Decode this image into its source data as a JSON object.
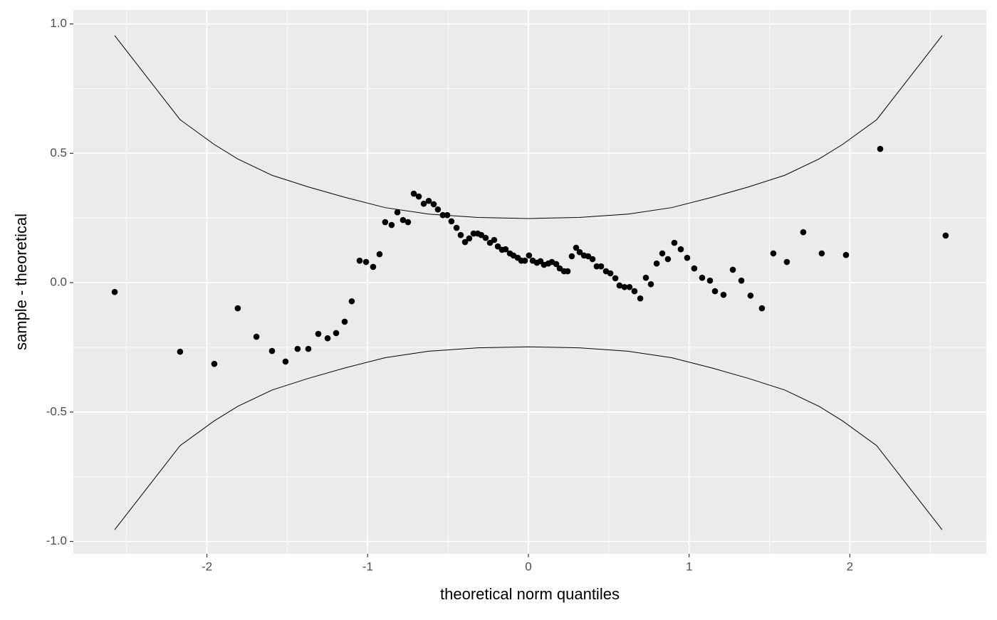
{
  "chart_data": {
    "type": "scatter",
    "x_label": "theoretical norm quantiles",
    "y_label": "sample - theoretical",
    "xlim": [
      -2.831,
      2.849
    ],
    "ylim": [
      -1.048,
      1.054
    ],
    "xticks": [
      -2,
      -1,
      0,
      1,
      2
    ],
    "yticks": [
      {
        "value": -1,
        "label": "-1.0"
      },
      {
        "value": -0.5,
        "label": "-0.5"
      },
      {
        "value": 0,
        "label": "0.0"
      },
      {
        "value": 0.5,
        "label": "0.5"
      },
      {
        "value": 1,
        "label": "1.0"
      }
    ],
    "xminor": [
      -2.5,
      -1.5,
      -0.5,
      0.5,
      1.5,
      2.5
    ],
    "yminor": [
      -0.75,
      -0.25,
      0.25,
      0.75
    ],
    "grid": true,
    "color": "#000000",
    "x": [
      -2.574,
      -2.167,
      -1.954,
      -1.808,
      -1.692,
      -1.595,
      -1.511,
      -1.436,
      -1.369,
      -1.307,
      -1.249,
      -1.196,
      -1.143,
      -1.099,
      -1.05,
      -1.01,
      -0.966,
      -0.926,
      -0.891,
      -0.851,
      -0.815,
      -0.78,
      -0.749,
      -0.713,
      -0.682,
      -0.651,
      -0.62,
      -0.589,
      -0.563,
      -0.532,
      -0.505,
      -0.479,
      -0.447,
      -0.421,
      -0.394,
      -0.368,
      -0.341,
      -0.315,
      -0.293,
      -0.266,
      -0.239,
      -0.213,
      -0.19,
      -0.164,
      -0.142,
      -0.115,
      -0.093,
      -0.066,
      -0.044,
      -0.022,
      0.004,
      0.027,
      0.053,
      0.075,
      0.097,
      0.124,
      0.146,
      0.173,
      0.195,
      0.222,
      0.244,
      0.27,
      0.297,
      0.319,
      0.346,
      0.372,
      0.399,
      0.425,
      0.452,
      0.483,
      0.51,
      0.541,
      0.567,
      0.598,
      0.629,
      0.66,
      0.696,
      0.731,
      0.762,
      0.798,
      0.833,
      0.868,
      0.908,
      0.948,
      0.988,
      1.032,
      1.081,
      1.13,
      1.161,
      1.214,
      1.272,
      1.325,
      1.382,
      1.453,
      1.524,
      1.608,
      1.71,
      1.825,
      1.976,
      2.189,
      2.596
    ],
    "values": [
      -0.036,
      -0.267,
      -0.314,
      -0.099,
      -0.209,
      -0.264,
      -0.305,
      -0.256,
      -0.256,
      -0.198,
      -0.215,
      -0.195,
      -0.151,
      -0.072,
      0.085,
      0.08,
      0.061,
      0.11,
      0.234,
      0.223,
      0.272,
      0.242,
      0.234,
      0.344,
      0.333,
      0.305,
      0.316,
      0.303,
      0.283,
      0.261,
      0.261,
      0.237,
      0.212,
      0.184,
      0.157,
      0.171,
      0.19,
      0.19,
      0.184,
      0.173,
      0.154,
      0.165,
      0.14,
      0.127,
      0.129,
      0.113,
      0.105,
      0.096,
      0.085,
      0.085,
      0.105,
      0.085,
      0.077,
      0.083,
      0.069,
      0.074,
      0.08,
      0.072,
      0.055,
      0.044,
      0.044,
      0.102,
      0.135,
      0.118,
      0.105,
      0.102,
      0.091,
      0.063,
      0.063,
      0.044,
      0.036,
      0.017,
      -0.011,
      -0.017,
      -0.017,
      -0.033,
      -0.061,
      0.019,
      -0.006,
      0.074,
      0.113,
      0.091,
      0.154,
      0.129,
      0.096,
      0.055,
      0.019,
      0.008,
      -0.033,
      -0.047,
      0.05,
      0.008,
      -0.05,
      -0.099,
      0.113,
      0.08,
      0.195,
      0.113,
      0.107,
      0.517,
      0.182
    ],
    "lines": [
      {
        "color": "#000000",
        "x": [
          -2.574,
          -2.167,
          -1.954,
          -1.808,
          -1.595,
          -1.369,
          -1.143,
          -0.891,
          -0.62,
          -0.315,
          0,
          0.315,
          0.62,
          0.891,
          1.143,
          1.369,
          1.595,
          1.808,
          1.954,
          2.167,
          2.574
        ],
        "values": [
          0.955,
          0.63,
          0.534,
          0.478,
          0.415,
          0.37,
          0.33,
          0.29,
          0.265,
          0.252,
          0.248,
          0.252,
          0.265,
          0.29,
          0.33,
          0.37,
          0.415,
          0.478,
          0.534,
          0.63,
          0.955
        ]
      },
      {
        "color": "#000000",
        "x": [
          -2.574,
          -2.167,
          -1.954,
          -1.808,
          -1.595,
          -1.369,
          -1.143,
          -0.891,
          -0.62,
          -0.315,
          0,
          0.315,
          0.62,
          0.891,
          1.143,
          1.369,
          1.595,
          1.808,
          1.954,
          2.167,
          2.574
        ],
        "values": [
          -0.955,
          -0.63,
          -0.534,
          -0.478,
          -0.415,
          -0.37,
          -0.33,
          -0.29,
          -0.265,
          -0.252,
          -0.248,
          -0.252,
          -0.265,
          -0.29,
          -0.33,
          -0.37,
          -0.415,
          -0.478,
          -0.534,
          -0.63,
          -0.955
        ]
      }
    ]
  }
}
